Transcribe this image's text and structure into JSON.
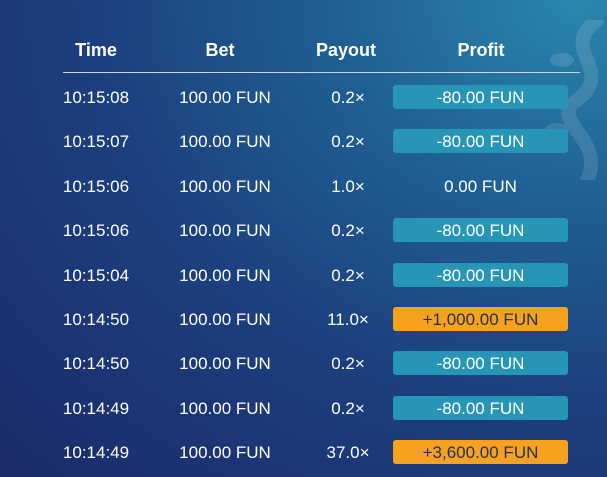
{
  "headers": {
    "time": "Time",
    "bet": "Bet",
    "payout": "Payout",
    "profit": "Profit"
  },
  "colors": {
    "loss": "#2796b6",
    "win": "#f7a21f"
  },
  "rows": [
    {
      "time": "10:15:08",
      "bet": "100.00 FUN",
      "payout": "0.2×",
      "profit": "-80.00 FUN",
      "kind": "loss"
    },
    {
      "time": "10:15:07",
      "bet": "100.00 FUN",
      "payout": "0.2×",
      "profit": "-80.00 FUN",
      "kind": "loss"
    },
    {
      "time": "10:15:06",
      "bet": "100.00 FUN",
      "payout": "1.0×",
      "profit": "0.00 FUN",
      "kind": "none"
    },
    {
      "time": "10:15:06",
      "bet": "100.00 FUN",
      "payout": "0.2×",
      "profit": "-80.00 FUN",
      "kind": "loss"
    },
    {
      "time": "10:15:04",
      "bet": "100.00 FUN",
      "payout": "0.2×",
      "profit": "-80.00 FUN",
      "kind": "loss"
    },
    {
      "time": "10:14:50",
      "bet": "100.00 FUN",
      "payout": "11.0×",
      "profit": "+1,000.00 FUN",
      "kind": "win"
    },
    {
      "time": "10:14:50",
      "bet": "100.00 FUN",
      "payout": "0.2×",
      "profit": "-80.00 FUN",
      "kind": "loss"
    },
    {
      "time": "10:14:49",
      "bet": "100.00 FUN",
      "payout": "0.2×",
      "profit": "-80.00 FUN",
      "kind": "loss"
    },
    {
      "time": "10:14:49",
      "bet": "100.00 FUN",
      "payout": "37.0×",
      "profit": "+3,600.00 FUN",
      "kind": "win"
    }
  ]
}
